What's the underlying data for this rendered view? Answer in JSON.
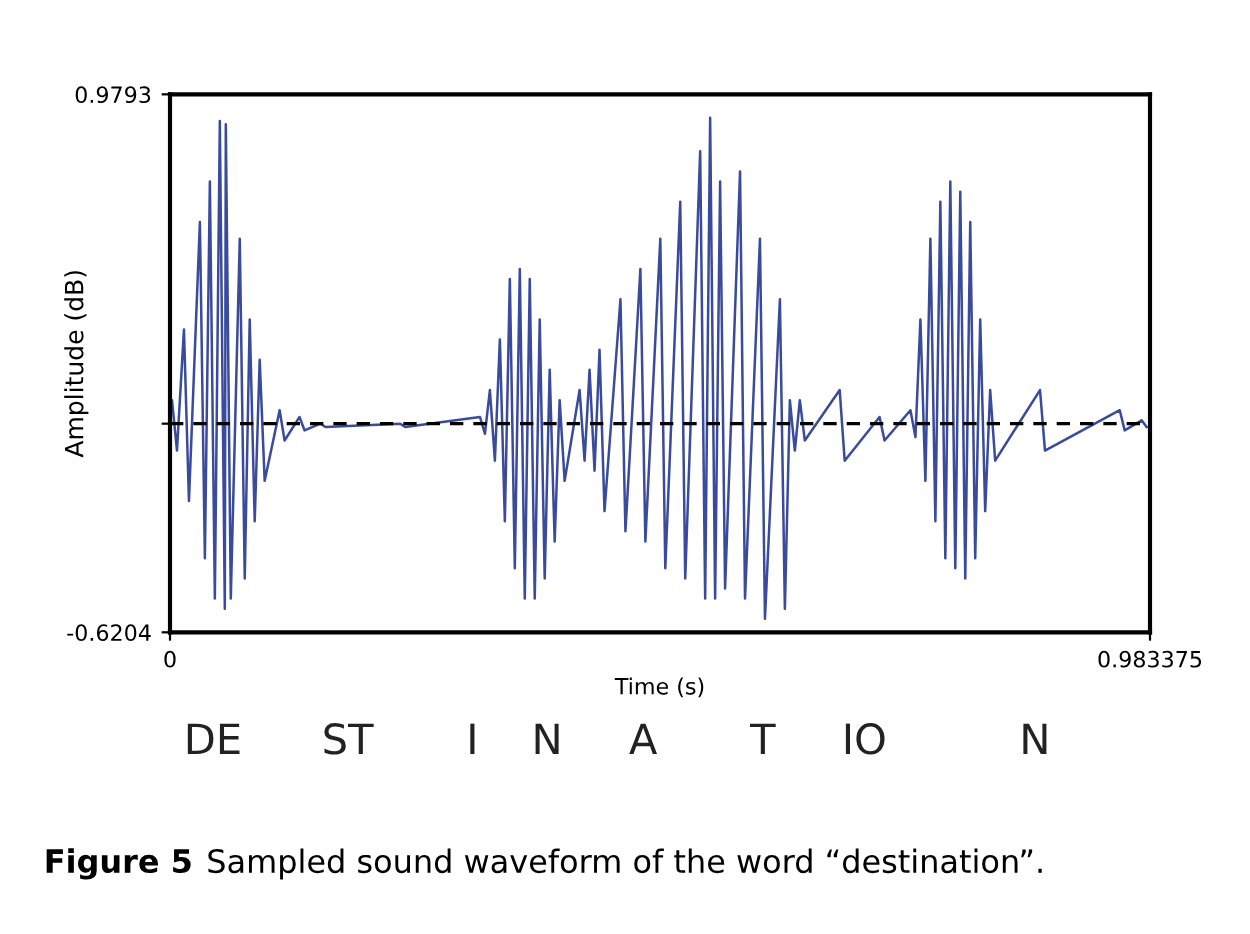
{
  "chart_data": {
    "type": "line",
    "xlabel": "Time (s)",
    "ylabel": "Amplitude (dB)",
    "x": [
      0,
      0.002,
      0.007,
      0.014,
      0.019,
      0.03,
      0.035,
      0.04,
      0.045,
      0.05,
      0.055,
      0.056,
      0.061,
      0.07,
      0.075,
      0.08,
      0.085,
      0.09,
      0.095,
      0.11,
      0.115,
      0.13,
      0.135,
      0.151,
      0.156,
      0.231,
      0.236,
      0.311,
      0.316,
      0.321,
      0.326,
      0.331,
      0.336,
      0.341,
      0.346,
      0.351,
      0.356,
      0.361,
      0.366,
      0.371,
      0.376,
      0.381,
      0.386,
      0.391,
      0.396,
      0.411,
      0.416,
      0.421,
      0.426,
      0.431,
      0.436,
      0.452,
      0.457,
      0.472,
      0.477,
      0.492,
      0.497,
      0.512,
      0.517,
      0.532,
      0.537,
      0.542,
      0.547,
      0.552,
      0.557,
      0.572,
      0.577,
      0.592,
      0.597,
      0.612,
      0.617,
      0.622,
      0.627,
      0.632,
      0.637,
      0.672,
      0.677,
      0.712,
      0.717,
      0.743,
      0.748,
      0.753,
      0.758,
      0.763,
      0.768,
      0.773,
      0.778,
      0.783,
      0.788,
      0.793,
      0.798,
      0.803,
      0.808,
      0.813,
      0.818,
      0.823,
      0.828,
      0.873,
      0.878,
      0.953,
      0.958,
      0.975,
      0.98
    ],
    "series": [
      {
        "color": "#3a4a9c",
        "values": [
          0,
          0.07,
          -0.08,
          0.28,
          -0.23,
          0.6,
          -0.4,
          0.72,
          -0.52,
          0.9,
          -0.55,
          0.89,
          -0.52,
          0.55,
          -0.46,
          0.31,
          -0.29,
          0.19,
          -0.17,
          0.04,
          -0.05,
          0.02,
          -0.02,
          0.0,
          -0.01,
          0.0,
          -0.01,
          0.02,
          -0.03,
          0.1,
          -0.11,
          0.25,
          -0.29,
          0.43,
          -0.43,
          0.46,
          -0.52,
          0.43,
          -0.52,
          0.31,
          -0.46,
          0.16,
          -0.35,
          0.07,
          -0.17,
          0.1,
          -0.11,
          0.16,
          -0.14,
          0.22,
          -0.26,
          0.37,
          -0.32,
          0.46,
          -0.35,
          0.55,
          -0.43,
          0.66,
          -0.46,
          0.81,
          -0.52,
          0.91,
          -0.52,
          0.72,
          -0.49,
          0.75,
          -0.52,
          0.55,
          -0.58,
          0.37,
          -0.55,
          0.07,
          -0.08,
          0.07,
          -0.05,
          0.1,
          -0.11,
          0.02,
          -0.05,
          0.04,
          -0.04,
          0.31,
          -0.17,
          0.55,
          -0.29,
          0.66,
          -0.4,
          0.72,
          -0.43,
          0.69,
          -0.46,
          0.6,
          -0.4,
          0.31,
          -0.26,
          0.1,
          -0.11,
          0.1,
          -0.08,
          0.04,
          -0.02,
          0.01,
          -0.01
        ]
      }
    ],
    "xlim": [
      0,
      0.983375
    ],
    "xticks": [
      0,
      0.983375
    ],
    "ylim": [
      -0.6204,
      0.9793
    ],
    "yticks": [
      -0.6204,
      {
        "value": 0,
        "label": null
      },
      0.9793
    ],
    "ref_lines": [
      {
        "axis": "y",
        "value": 0,
        "color": "#000000",
        "line_style": "dashed"
      }
    ],
    "grid": false,
    "legend": false,
    "marker": "none",
    "line_style": "solid",
    "annotations": [
      "DE      ST       I    N     A       T     IO          N",
      "Figure 5",
      "Sampled sound waveform of the word “destination”."
    ]
  }
}
